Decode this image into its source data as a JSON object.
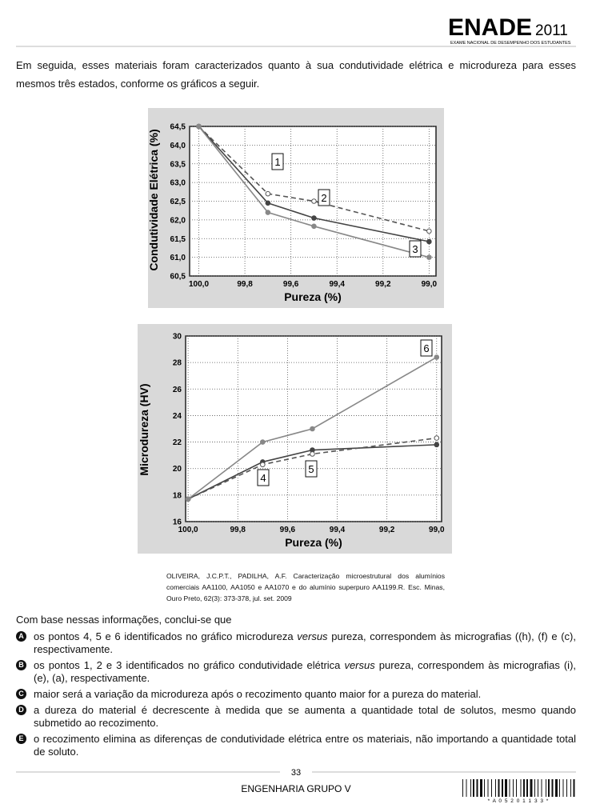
{
  "header": {
    "title": "ENADE",
    "year": "2011",
    "subtitle": "EXAME NACIONAL DE DESEMPENHO DOS ESTUDANTES"
  },
  "intro": "Em seguida, esses materiais foram caracterizados quanto à sua condutividade elétrica e microdureza para esses mesmos três estados, conforme os gráficos a seguir.",
  "chart_data": [
    {
      "type": "line",
      "x_label": "Pureza (%)",
      "y_label": "Condutividade Elétrica (%)",
      "xlim": [
        100.04,
        98.97
      ],
      "ylim": [
        60.5,
        64.5
      ],
      "xticks": [
        {
          "value": 100,
          "label": "100,0"
        },
        {
          "value": 99.8,
          "label": "99,8"
        },
        {
          "value": 99.6,
          "label": "99,6"
        },
        {
          "value": 99.4,
          "label": "99,4"
        },
        {
          "value": 99.2,
          "label": "99,2"
        },
        {
          "value": 99,
          "label": "99,0"
        }
      ],
      "yticks": [
        {
          "value": 60.5,
          "label": "60,5"
        },
        {
          "value": 61,
          "label": "61,0"
        },
        {
          "value": 61.5,
          "label": "61,5"
        },
        {
          "value": 62,
          "label": "62,0"
        },
        {
          "value": 62.5,
          "label": "62,5"
        },
        {
          "value": 63,
          "label": "63,0"
        },
        {
          "value": 63.5,
          "label": "63,5"
        },
        {
          "value": 64,
          "label": "64,0"
        },
        {
          "value": 64.5,
          "label": "64,5"
        }
      ],
      "grid": true,
      "x": [
        100,
        99.7,
        99.5,
        99
      ],
      "series": [
        {
          "name": "1",
          "color": "#555555",
          "line_style": "dashed",
          "marker": "open",
          "values": [
            64.5,
            62.7,
            62.5,
            61.7
          ]
        },
        {
          "name": "2",
          "color": "#444444",
          "line_style": "solid",
          "marker": "filled",
          "values": [
            64.5,
            62.45,
            62.05,
            61.42
          ]
        },
        {
          "name": "3",
          "color": "#888888",
          "line_style": "solid",
          "marker": "filled",
          "values": [
            64.5,
            62.2,
            61.83,
            61.0
          ]
        }
      ]
    },
    {
      "type": "line",
      "x_label": "Pureza (%)",
      "y_label": "Microdureza (HV)",
      "xlim": [
        100.01,
        98.98
      ],
      "ylim": [
        16,
        30
      ],
      "xticks": [
        {
          "value": 100,
          "label": "100,0"
        },
        {
          "value": 99.8,
          "label": "99,8"
        },
        {
          "value": 99.6,
          "label": "99,6"
        },
        {
          "value": 99.4,
          "label": "99,4"
        },
        {
          "value": 99.2,
          "label": "99,2"
        },
        {
          "value": 99,
          "label": "99,0"
        }
      ],
      "yticks": [
        16,
        18,
        20,
        22,
        24,
        26,
        28,
        30
      ],
      "grid": true,
      "x": [
        100,
        99.7,
        99.5,
        99
      ],
      "series": [
        {
          "name": "4",
          "color": "#444444",
          "line_style": "solid",
          "marker": "filled",
          "values": [
            17.7,
            20.5,
            21.4,
            21.8
          ]
        },
        {
          "name": "5",
          "color": "#555555",
          "line_style": "dashed",
          "marker": "open",
          "values": [
            17.7,
            20.3,
            21.1,
            22.3
          ]
        },
        {
          "name": "6",
          "color": "#888888",
          "line_style": "solid",
          "marker": "filled",
          "values": [
            17.7,
            22.0,
            23.0,
            28.4
          ]
        }
      ]
    }
  ],
  "citation": "OLIVEIRA, J.C.P.T., PADILHA, A.F. Caracterização microestrutural dos alumínios comerciais AA1100, AA1050 e AA1070 e do alumínio superpuro AA1199.R. Esc. Minas, Ouro Preto, 62(3): 373-378, jul. set. 2009",
  "question": "Com base nessas informações, conclui-se que",
  "options": [
    {
      "letter": "A",
      "text": [
        "os pontos 4, 5 e 6 identificados no gráfico microdureza ",
        "versus",
        " pureza, correspondem às micrografias ((h), (f) e (c), respectivamente."
      ]
    },
    {
      "letter": "B",
      "text": [
        "os pontos 1, 2 e 3 identificados no gráfico condutividade elétrica ",
        "versus",
        " pureza, correspondem às micrografias (i), (e), (a), respectivamente."
      ]
    },
    {
      "letter": "C",
      "text": [
        "maior será a variação da microdureza após o recozimento quanto maior for a pureza do material."
      ]
    },
    {
      "letter": "D",
      "text": [
        "a dureza do material é decrescente à medida que se aumenta a quantidade total de solutos, mesmo quando submetido ao recozimento."
      ]
    },
    {
      "letter": "E",
      "text": [
        "o recozimento elimina as diferenças de condutividade elétrica entre os materiais, não importando a quantidade total de soluto."
      ]
    }
  ],
  "footer": {
    "page": "33",
    "course": "ENGENHARIA GRUPO V",
    "barcode": "* A 0 5 2 0 1 1 3 3 *"
  }
}
